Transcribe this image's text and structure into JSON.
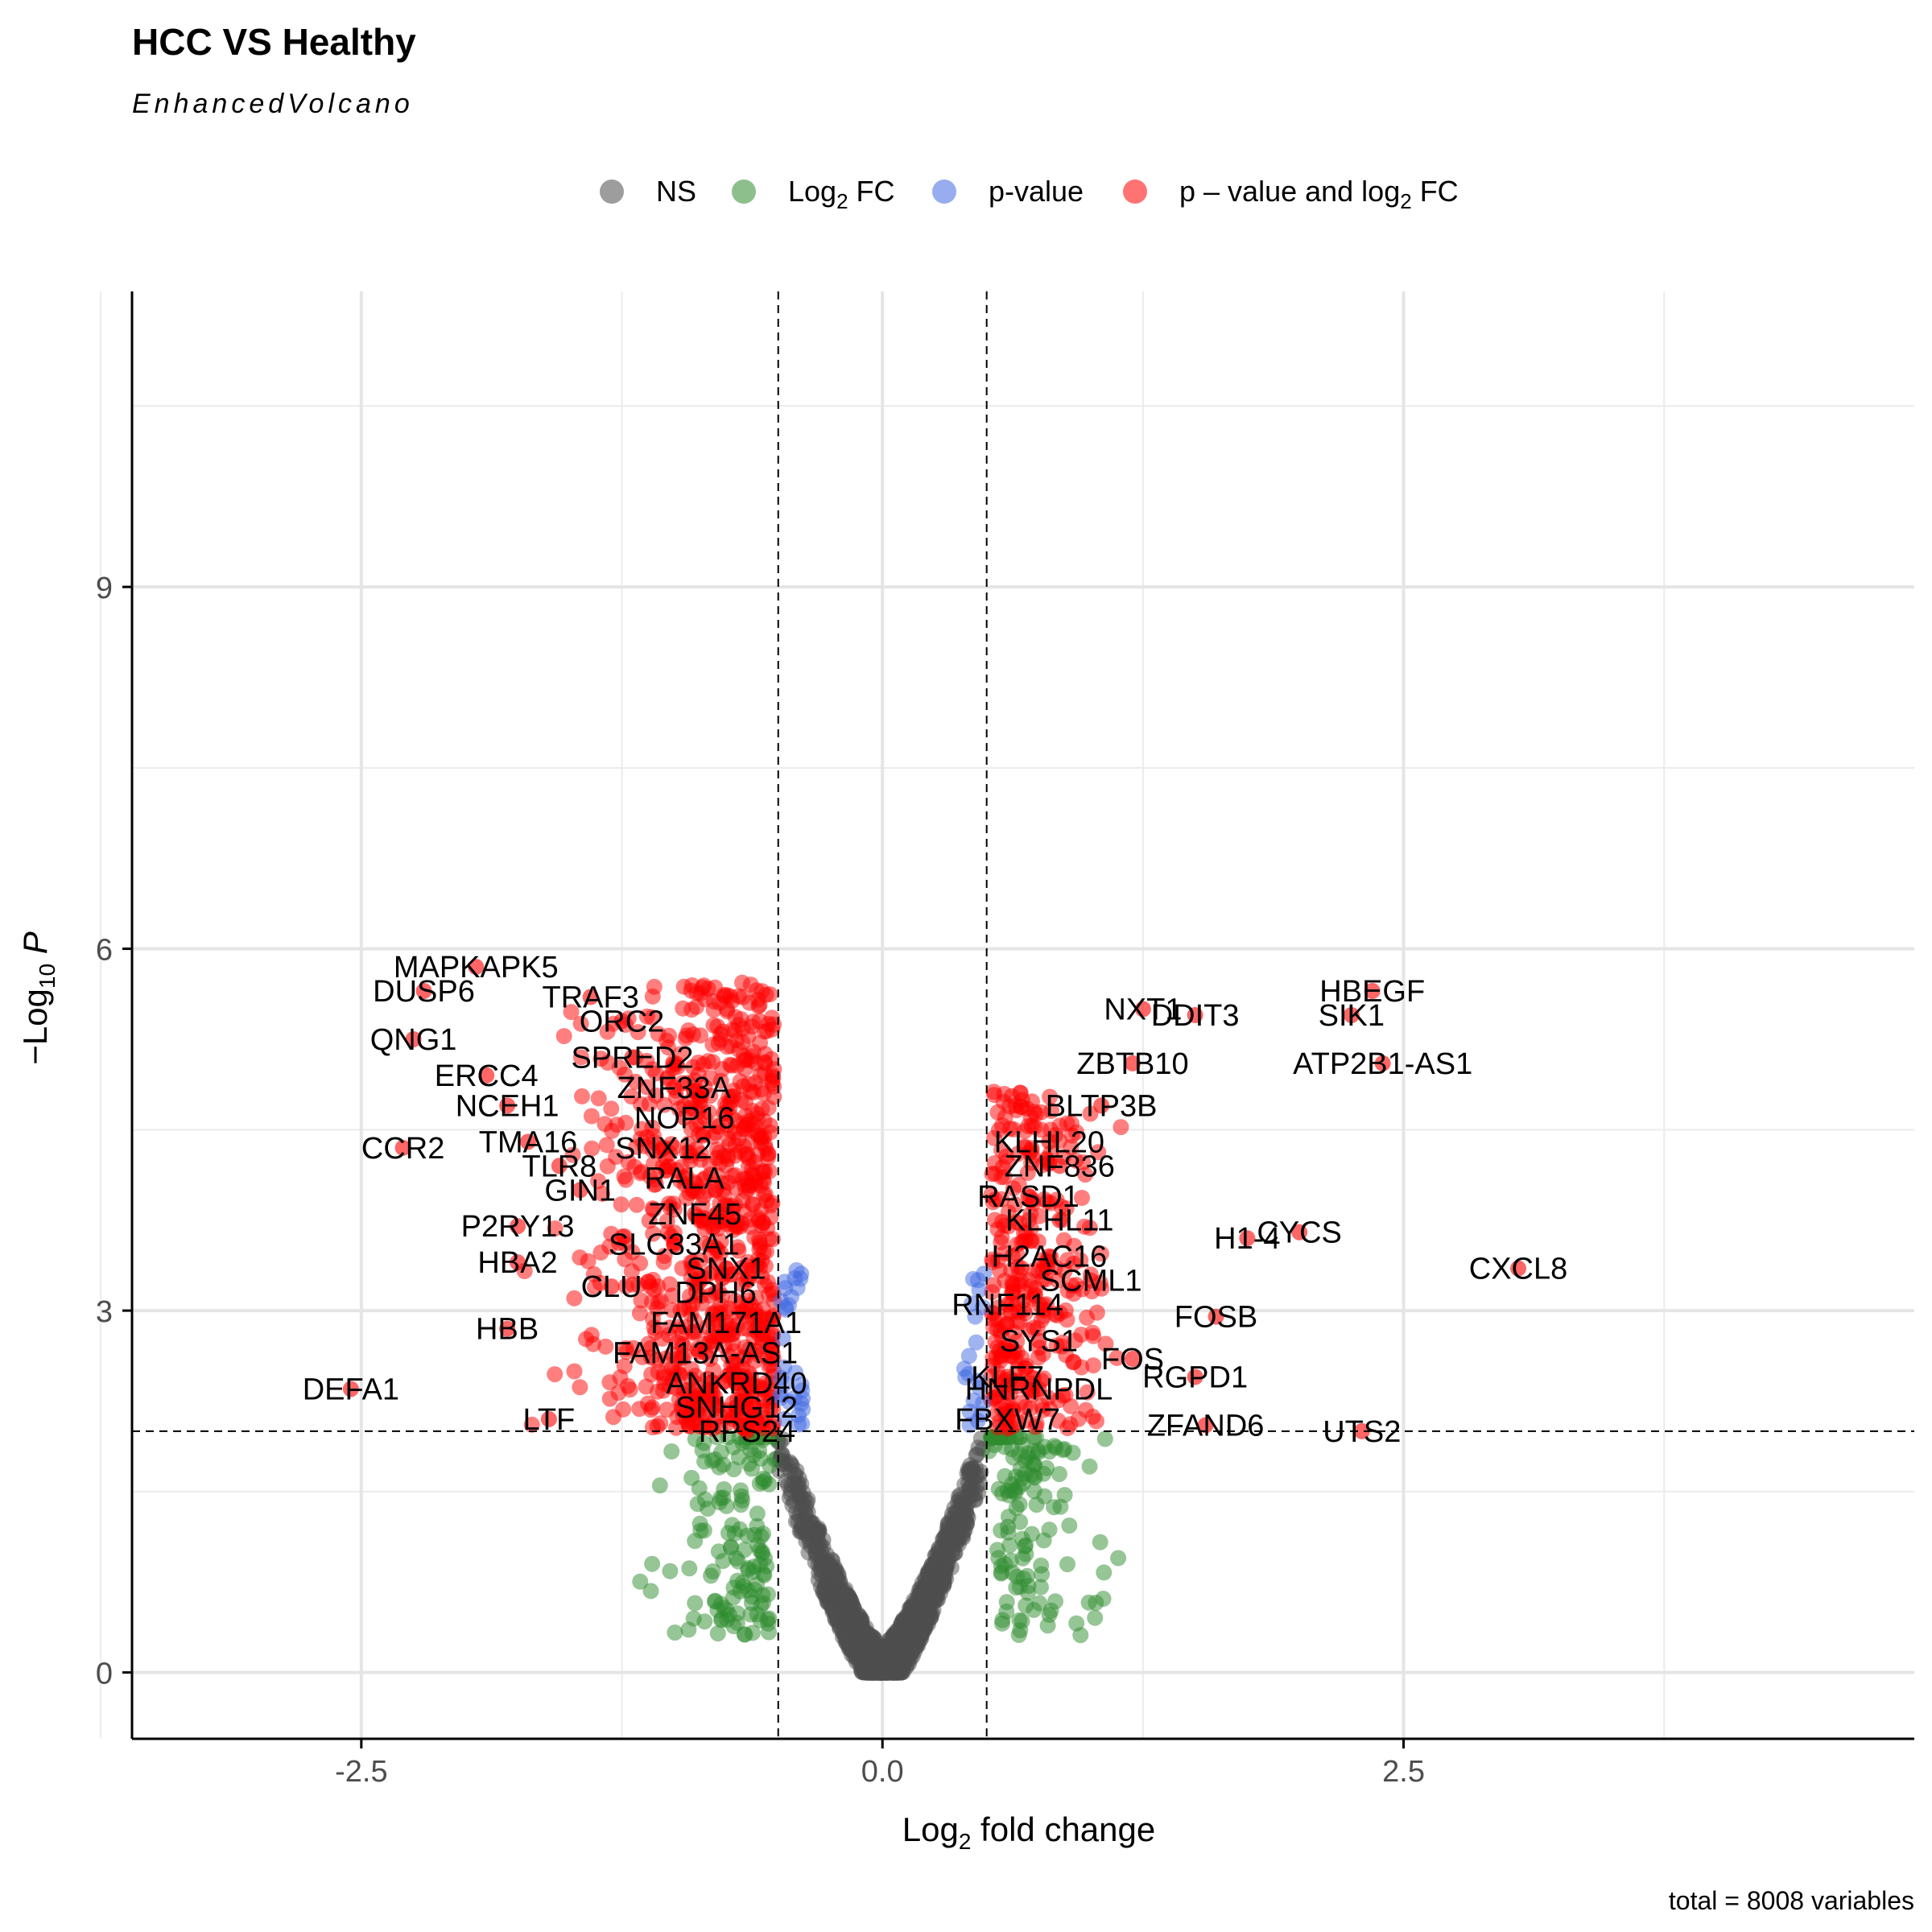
{
  "chart_data": {
    "type": "scatter",
    "title": "HCC VS Healthy",
    "subtitle": "EnhancedVolcano",
    "xlabel": "Log2 fold change",
    "ylabel": "-Log10 P",
    "caption": "total = 8008 variables",
    "xlim": [
      -3.6,
      4.95
    ],
    "ylim": [
      -0.55,
      11.45
    ],
    "x_ticks": [
      -2.5,
      0.0,
      2.5
    ],
    "x_tick_labels": [
      "-2.5",
      "0.0",
      "2.5"
    ],
    "y_ticks": [
      0,
      3,
      6,
      9
    ],
    "y_tick_labels": [
      "0",
      "3",
      "6",
      "9"
    ],
    "fc_cutoff": 0.5,
    "p_cutoff_neglog10": 2,
    "grid": true,
    "legend_position": "top",
    "legend": [
      {
        "key": "NS",
        "label": "NS",
        "color": "#4d4d4d"
      },
      {
        "key": "FC",
        "label": "Log",
        "label_sub": "2",
        "label_suffix": " FC",
        "color": "#2e8b2e"
      },
      {
        "key": "P",
        "label": "p-value",
        "color": "#4169e1"
      },
      {
        "key": "FC_P",
        "label": "p – value and log",
        "label_sub": "2",
        "label_suffix": " FC",
        "color": "#ff0000"
      }
    ],
    "labeled_points": [
      {
        "gene": "MAPKAPK5",
        "x": -1.95,
        "y": 5.85
      },
      {
        "gene": "DUSP6",
        "x": -2.2,
        "y": 5.65
      },
      {
        "gene": "TRAF3",
        "x": -1.4,
        "y": 5.6
      },
      {
        "gene": "QNG1",
        "x": -2.25,
        "y": 5.25
      },
      {
        "gene": "ORC2",
        "x": -1.25,
        "y": 5.4
      },
      {
        "gene": "SPRED2",
        "x": -1.2,
        "y": 5.1
      },
      {
        "gene": "ERCC4",
        "x": -1.9,
        "y": 4.95
      },
      {
        "gene": "ZNF33A",
        "x": -1.0,
        "y": 4.85
      },
      {
        "gene": "NCEH1",
        "x": -1.8,
        "y": 4.7
      },
      {
        "gene": "NOP16",
        "x": -0.95,
        "y": 4.6
      },
      {
        "gene": "TMA16",
        "x": -1.7,
        "y": 4.4
      },
      {
        "gene": "SNX12",
        "x": -1.05,
        "y": 4.35
      },
      {
        "gene": "CCR2",
        "x": -2.3,
        "y": 4.35
      },
      {
        "gene": "TLR8",
        "x": -1.55,
        "y": 4.2
      },
      {
        "gene": "RALA",
        "x": -0.95,
        "y": 4.1
      },
      {
        "gene": "GIN1",
        "x": -1.45,
        "y": 4.0
      },
      {
        "gene": "ZNF45",
        "x": -0.9,
        "y": 3.8
      },
      {
        "gene": "P2RY13",
        "x": -1.75,
        "y": 3.7
      },
      {
        "gene": "SLC33A1",
        "x": -1.0,
        "y": 3.55
      },
      {
        "gene": "HBA2",
        "x": -1.75,
        "y": 3.4
      },
      {
        "gene": "SNX1",
        "x": -0.75,
        "y": 3.35
      },
      {
        "gene": "CLU",
        "x": -1.3,
        "y": 3.2
      },
      {
        "gene": "DPH6",
        "x": -0.8,
        "y": 3.15
      },
      {
        "gene": "FAM171A1",
        "x": -0.75,
        "y": 2.9
      },
      {
        "gene": "HBB",
        "x": -1.8,
        "y": 2.85
      },
      {
        "gene": "FAM13A-AS1",
        "x": -0.85,
        "y": 2.65
      },
      {
        "gene": "ANKRD40",
        "x": -0.7,
        "y": 2.4
      },
      {
        "gene": "DEFA1",
        "x": -2.55,
        "y": 2.35
      },
      {
        "gene": "SNHG12",
        "x": -0.7,
        "y": 2.2
      },
      {
        "gene": "LTF",
        "x": -1.6,
        "y": 2.1
      },
      {
        "gene": "RPS24",
        "x": -0.65,
        "y": 2.0
      },
      {
        "gene": "NXT1",
        "x": 1.25,
        "y": 5.5
      },
      {
        "gene": "HBEGF",
        "x": 2.35,
        "y": 5.65
      },
      {
        "gene": "DDIT3",
        "x": 1.5,
        "y": 5.45
      },
      {
        "gene": "SIK1",
        "x": 2.25,
        "y": 5.45
      },
      {
        "gene": "ZBTB10",
        "x": 1.2,
        "y": 5.05
      },
      {
        "gene": "ATP2B1-AS1",
        "x": 2.4,
        "y": 5.05
      },
      {
        "gene": "BLTP3B",
        "x": 1.05,
        "y": 4.7
      },
      {
        "gene": "KLHL20",
        "x": 0.8,
        "y": 4.4
      },
      {
        "gene": "ZNF836",
        "x": 0.85,
        "y": 4.2
      },
      {
        "gene": "RASD1",
        "x": 0.7,
        "y": 3.95
      },
      {
        "gene": "KLHL11",
        "x": 0.85,
        "y": 3.75
      },
      {
        "gene": "CYCS",
        "x": 2.0,
        "y": 3.65
      },
      {
        "gene": "H1-4",
        "x": 1.75,
        "y": 3.6
      },
      {
        "gene": "H2AC16",
        "x": 0.8,
        "y": 3.45
      },
      {
        "gene": "CXCL8",
        "x": 3.05,
        "y": 3.35
      },
      {
        "gene": "SCML1",
        "x": 1.0,
        "y": 3.25
      },
      {
        "gene": "RNF114",
        "x": 0.6,
        "y": 3.05
      },
      {
        "gene": "FOSB",
        "x": 1.6,
        "y": 2.95
      },
      {
        "gene": "SYS1",
        "x": 0.75,
        "y": 2.75
      },
      {
        "gene": "FOS",
        "x": 1.2,
        "y": 2.6
      },
      {
        "gene": "KLF7",
        "x": 0.6,
        "y": 2.45
      },
      {
        "gene": "RGPD1",
        "x": 1.5,
        "y": 2.45
      },
      {
        "gene": "HNRNPDL",
        "x": 0.75,
        "y": 2.35
      },
      {
        "gene": "FBXW7",
        "x": 0.6,
        "y": 2.1
      },
      {
        "gene": "ZFAND6",
        "x": 1.55,
        "y": 2.05
      },
      {
        "gene": "UTS2",
        "x": 2.3,
        "y": 2.0
      }
    ]
  }
}
